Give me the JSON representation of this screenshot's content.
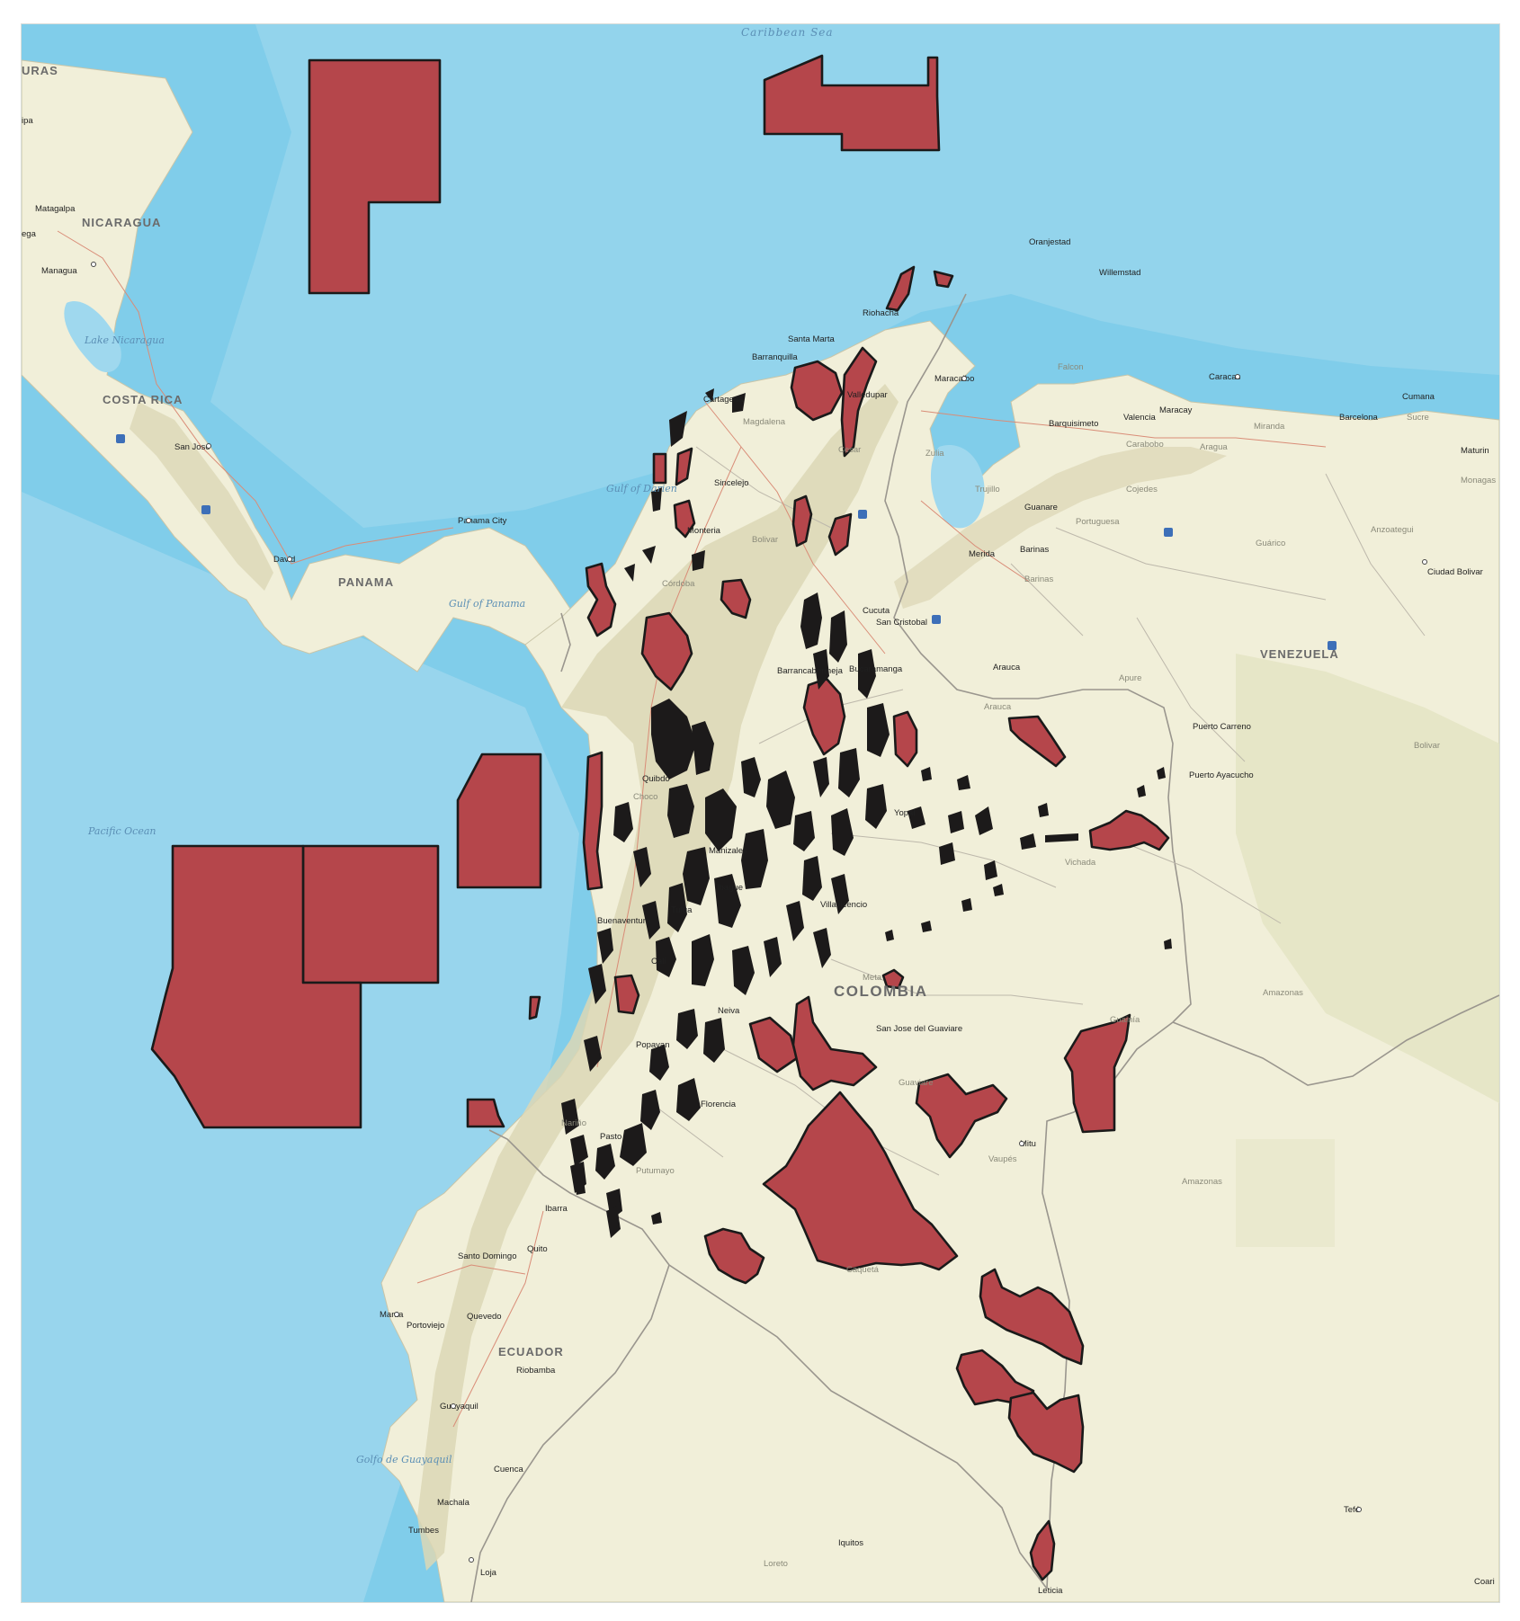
{
  "map": {
    "colors": {
      "ocean_deep": "#80cdea",
      "ocean_shallow": "#bfe6f3",
      "land": "#f1efd9",
      "mountains": "#dcd7b5",
      "polygon_fill": "#b5464b",
      "polygon_stroke": "#1a1a1a"
    },
    "water_labels": {
      "caribbean": "Caribbean Sea",
      "pacific": "Pacific Ocean",
      "gulf_darien": "Gulf of Darien",
      "gulf_panama": "Gulf of Panama",
      "golfo_guayaquil": "Golfo de Guayaquil",
      "lake_nicaragua": "Lake Nicaragua"
    },
    "country_labels": {
      "honduras": "URAS",
      "nicaragua": "NICARAGUA",
      "costa_rica": "COSTA RICA",
      "panama": "PANAMA",
      "venezuela": "VENEZUELA",
      "colombia": "COLOMBIA",
      "ecuador": "ECUADOR"
    },
    "cities": {
      "tegucigalpa": "ipa",
      "matagalpa": "Matagalpa",
      "managua": "Managua",
      "leon": "ega",
      "san_jose": "San Jose",
      "david": "David",
      "panama_city": "Panama City",
      "oranjestad": "Oranjestad",
      "willemstad": "Willemstad",
      "riohacha": "Riohacha",
      "santa_marta": "Santa Marta",
      "barranquilla": "Barranquilla",
      "cartagena": "Cartagena",
      "valledupar": "Valledupar",
      "maracaibo": "Maracaibo",
      "coro": "Coro",
      "caracas": "Caracas",
      "maracay": "Maracay",
      "valencia": "Valencia",
      "barquisimeto": "Barquisimeto",
      "cumana": "Cumana",
      "barcelona": "Barcelona",
      "maturin": "Maturin",
      "sincelejo": "Sincelejo",
      "monteria": "Monteria",
      "merida": "Merida",
      "barinas": "Barinas",
      "guanare": "Guanare",
      "cucuta": "Cucuta",
      "san_cristobal": "San Cristobal",
      "bucaramanga": "Bucaramanga",
      "barrancabermeja": "Barrancabermeja",
      "ciudad_bolivar": "Ciudad Bolivar",
      "arauca": "Arauca",
      "puerto_carreno": "Puerto Carreno",
      "puerto_ayacucho": "Puerto Ayacucho",
      "quibdo": "Quibdo",
      "manizales": "Manizales",
      "ibague": "Ibague",
      "yopal": "Yopal",
      "tulua": "Tulua",
      "buenaventura": "Buenaventura",
      "cali": "Cali",
      "villavicencio": "Villavicencio",
      "neiva": "Neiva",
      "popayan": "Popayan",
      "san_jose_guaviare": "San Jose del Guaviare",
      "florencia": "Florencia",
      "pasto": "Pasto",
      "mitu": "Mitu",
      "ibarra": "Ibarra",
      "quito": "Quito",
      "santo_domingo": "Santo Domingo",
      "manta": "Manta",
      "portoviejo": "Portoviejo",
      "quevedo": "Quevedo",
      "riobamba": "Riobamba",
      "guayaquil": "Guayaquil",
      "cuenca": "Cuenca",
      "machala": "Machala",
      "tumbes": "Tumbes",
      "loja": "Loja",
      "iquitos": "Iquitos",
      "tefe": "Tefé",
      "coari": "Coari",
      "leticia": "Leticia"
    },
    "regions": {
      "zulia": "Zulia",
      "trujillo": "Trujillo",
      "portuguesa": "Portuguesa",
      "cojedes": "Cojedes",
      "carabobo": "Carabobo",
      "aragua": "Aragua",
      "miranda": "Miranda",
      "falcon": "Falcon",
      "sucre": "Sucre",
      "monagas": "Monagas",
      "anzoategui": "Anzoategui",
      "guarico": "Guárico",
      "barinas_state": "Barinas",
      "apure": "Apure",
      "bolivar_ve": "Bolivar",
      "amazonas_ve": "Amazonas",
      "bolivar_co": "Bolivar",
      "magdalena": "Magdalena",
      "cordoba": "Córdoba",
      "cesar": "Cesar",
      "choco": "Choco",
      "arauca_dept": "Arauca",
      "vichada": "Vichada",
      "meta": "Meta",
      "guainia": "Guainía",
      "guaviare": "Guaviare",
      "vaupes": "Vaupés",
      "caqueta": "Caquetá",
      "putumayo": "Putumayo",
      "narino": "Nariño",
      "amazonas_co": "Amazonas",
      "loreto": "Loreto"
    }
  }
}
